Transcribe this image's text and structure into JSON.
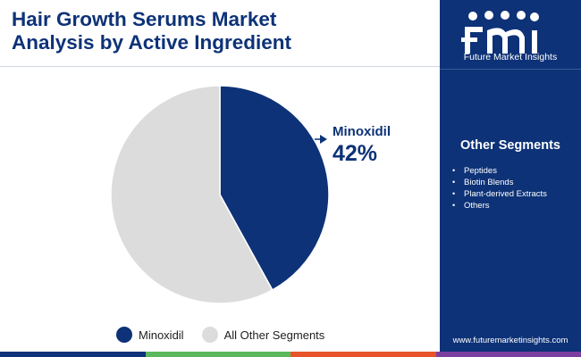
{
  "title_line1": "Hair Growth Serums Market",
  "title_line2": "Analysis by Active Ingredient",
  "annotation": {
    "label": "Minoxidil",
    "value": "42%"
  },
  "legend": [
    {
      "label": "Minoxidil",
      "color": "#0d3277"
    },
    {
      "label": "All Other Segments",
      "color": "#dcdcdc"
    }
  ],
  "sidebar": {
    "brand": "Future Market Insights",
    "heading": "Other Segments",
    "items": [
      "Peptides",
      "Biotin Blends",
      "Plant-derived Extracts",
      "Others"
    ],
    "bullet": "•",
    "url": "www.futuremarketinsights.com"
  },
  "colors": {
    "navy": "#0d3277",
    "grey": "#dcdcdc",
    "footer": [
      "#0d3277",
      "#5cb85c",
      "#e8542a",
      "#7b3fa0"
    ]
  },
  "chart_data": {
    "type": "pie",
    "categories": [
      "Minoxidil",
      "All Other Segments"
    ],
    "values": [
      42,
      58
    ],
    "colors": [
      "#0d3277",
      "#dcdcdc"
    ],
    "start_angle_deg": 0,
    "direction": "clockwise",
    "legend_placement": "bottom",
    "annotations": [
      {
        "category": "Minoxidil",
        "text": "42%"
      }
    ]
  }
}
